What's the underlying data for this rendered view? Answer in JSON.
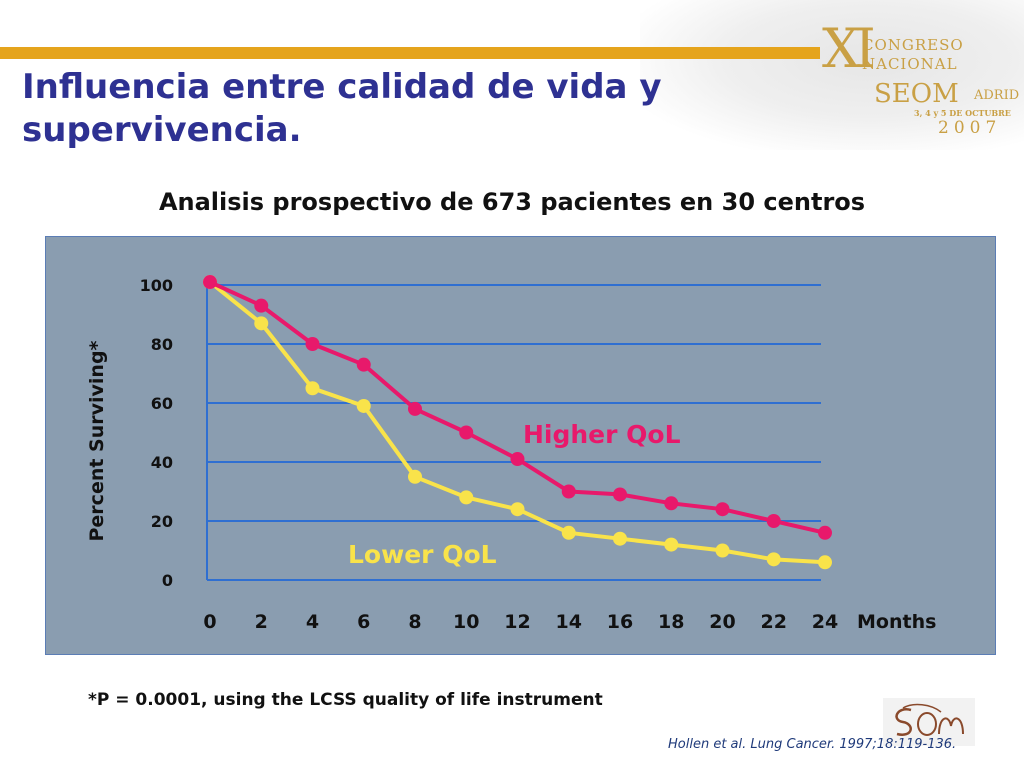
{
  "slide": {
    "title_line1": "Influencia entre calidad de vida y",
    "title_line2": "supervivencia.",
    "subtitle": "Analisis prospectivo de 673 pacientes en 30 centros",
    "footnote": "*P = 0.0001,  using the LCSS quality of life instrument",
    "citation": "Hollen et al. Lung Cancer. 1997;18:119-136."
  },
  "congress_logo": {
    "roman": "XI",
    "line1": "CONGRESO",
    "line2": "NACIONAL",
    "seom": "SEOM",
    "city": "ADRID",
    "dates": "3, 4 y 5 DE OCTUBRE",
    "year": "2007"
  },
  "colors": {
    "title": "#2e3192",
    "orange_bar": "#e5a41c",
    "plot_bg": "#8a9db0",
    "gridline": "#2f6fd1",
    "higher": "#e8196b",
    "lower": "#f9e34a"
  },
  "chart_data": {
    "type": "line",
    "title": "",
    "xlabel": "Months",
    "ylabel": "Percent Surviving*",
    "x": [
      0,
      2,
      4,
      6,
      8,
      10,
      12,
      14,
      16,
      18,
      20,
      22,
      24
    ],
    "x_tick_labels": [
      "0",
      "2",
      "4",
      "6",
      "8",
      "10",
      "12",
      "14",
      "16",
      "18",
      "20",
      "22",
      "24"
    ],
    "y_tick_labels": [
      "0",
      "20",
      "40",
      "60",
      "80",
      "100"
    ],
    "ylim": [
      0,
      100
    ],
    "grid": true,
    "series": [
      {
        "name": "Higher QoL",
        "color": "#e8196b",
        "values": [
          101,
          93,
          80,
          73,
          58,
          50,
          41,
          30,
          29,
          26,
          24,
          20,
          16
        ]
      },
      {
        "name": "Lower QoL",
        "color": "#f9e34a",
        "values": [
          101,
          87,
          65,
          59,
          35,
          28,
          24,
          16,
          14,
          12,
          10,
          7,
          6
        ]
      }
    ]
  }
}
